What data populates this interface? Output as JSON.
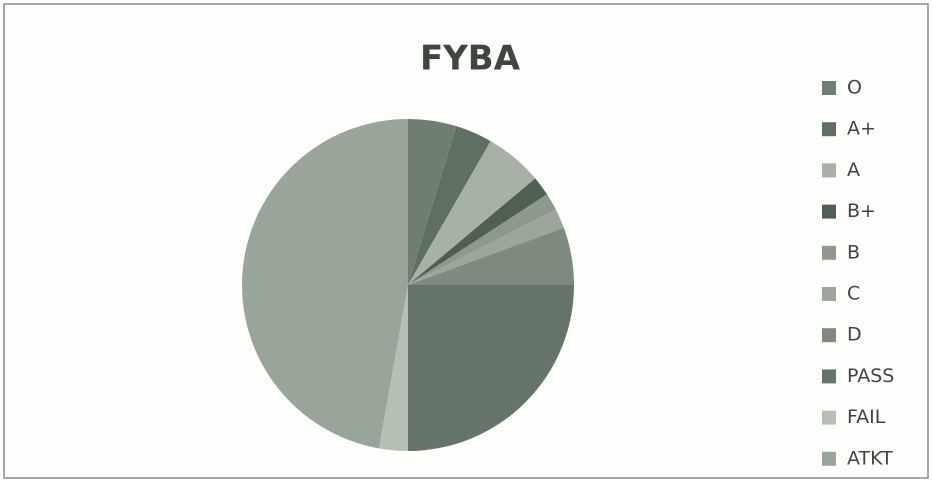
{
  "chart_data": {
    "type": "pie",
    "title": "FYBA",
    "categories": [
      "O",
      "A+",
      "A",
      "B+",
      "B",
      "C",
      "D",
      "PASS",
      "FAIL",
      "ATKT"
    ],
    "values": [
      4.7,
      3.6,
      5.6,
      1.9,
      1.7,
      1.9,
      5.6,
      25,
      2.8,
      47.2
    ],
    "colors": [
      "#6f7e70",
      "#5f6f61",
      "#a7b1a6",
      "#4f5f52",
      "#8e998d",
      "#9ca69b",
      "#7e8a7d",
      "#66746a",
      "#b6bfb4",
      "#9aa59a"
    ],
    "legend": "right"
  }
}
